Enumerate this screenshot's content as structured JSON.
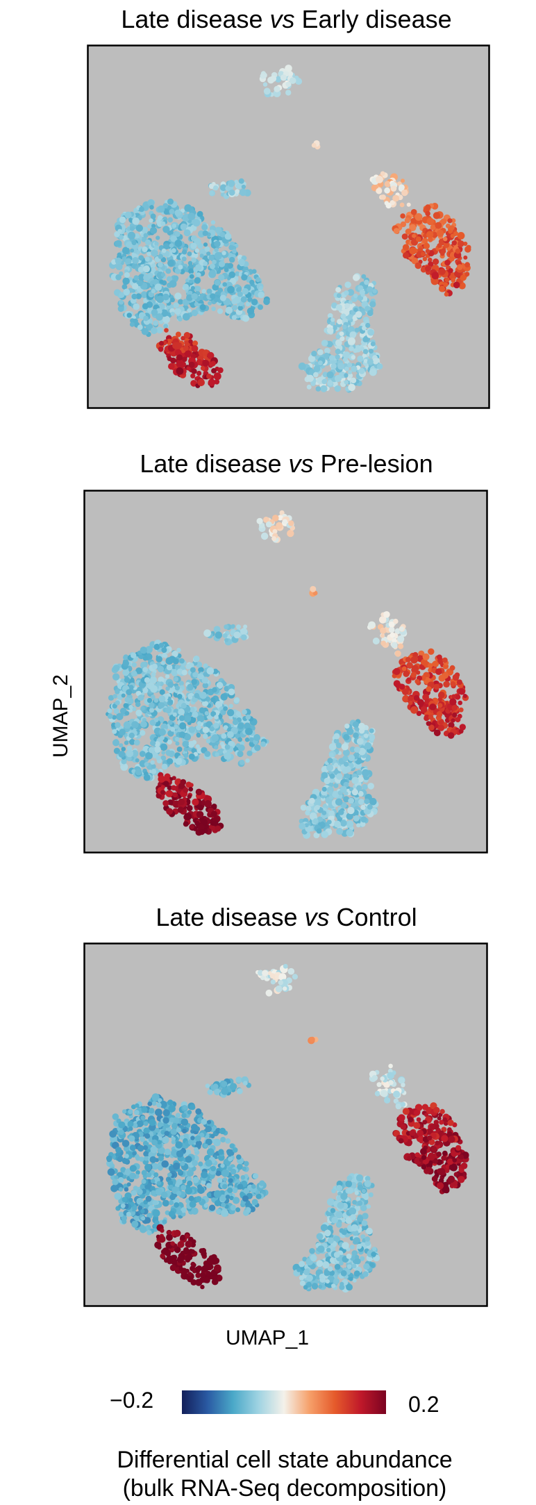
{
  "chart_data": {
    "type": "scatter",
    "y_axis_label": "UMAP_2",
    "x_axis_label": "UMAP_1",
    "panels": [
      {
        "title_pre": "Late disease ",
        "title_vs": "vs",
        "title_post": " Early disease",
        "cluster_values": {
          "top_small": -0.03,
          "tiny_dot": 0.0,
          "mid_small": -0.05,
          "large_left": -0.07,
          "left_tail": 0.13,
          "right_upper": 0.02,
          "right_lower": 0.09,
          "lower_mid": -0.05
        }
      },
      {
        "title_pre": "Late disease ",
        "title_vs": "vs",
        "title_post": " Pre-lesion",
        "cluster_values": {
          "top_small": 0.0,
          "tiny_dot": 0.05,
          "mid_small": -0.06,
          "large_left": -0.07,
          "left_tail": 0.16,
          "right_upper": 0.0,
          "right_lower": 0.11,
          "lower_mid": -0.06
        }
      },
      {
        "title_pre": "Late disease ",
        "title_vs": "vs",
        "title_post": " Control",
        "cluster_values": {
          "top_small": -0.02,
          "tiny_dot": 0.05,
          "mid_small": -0.08,
          "large_left": -0.09,
          "left_tail": 0.19,
          "right_upper": -0.02,
          "right_lower": 0.15,
          "lower_mid": -0.07
        }
      }
    ],
    "colorbar": {
      "min_label": "−0.2",
      "max_label": "0.2",
      "range": [
        -0.2,
        0.2
      ],
      "colors": [
        "#131f5a",
        "#2a5aa3",
        "#4aa8c8",
        "#9fd3e2",
        "#f4f1ea",
        "#f6a06a",
        "#e55a2b",
        "#c0192a",
        "#7a0321"
      ]
    },
    "colorbar_title_line1": "Differential cell state abundance",
    "colorbar_title_line2": "(bulk RNA-Seq decomposition)",
    "background_color": "#bdbdbd"
  }
}
